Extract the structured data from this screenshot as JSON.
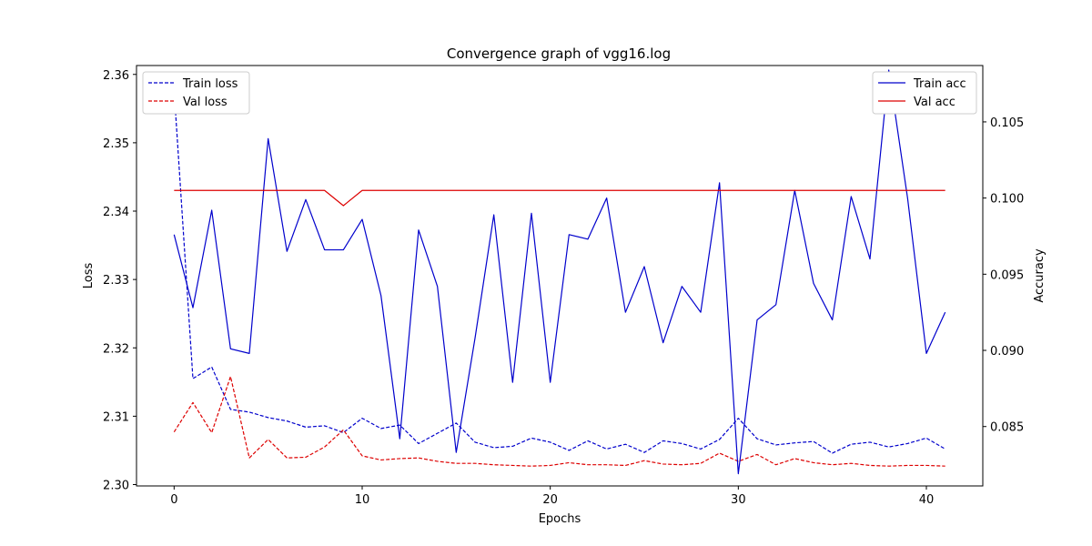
{
  "chart_data": {
    "type": "line",
    "title": "Convergence graph of vgg16.log",
    "xlabel": "Epochs",
    "ylabel_left": "Loss",
    "ylabel_right": "Accuracy",
    "xlim": [
      -2,
      43
    ],
    "ylim_left": [
      2.2998,
      2.3613
    ],
    "ylim_right": [
      0.0811,
      0.1087
    ],
    "x_ticks": [
      0,
      10,
      20,
      30,
      40
    ],
    "y_ticks_left": [
      2.3,
      2.31,
      2.32,
      2.33,
      2.34,
      2.35,
      2.36
    ],
    "y_tick_labels_left": [
      "2.30",
      "2.31",
      "2.32",
      "2.33",
      "2.34",
      "2.35",
      "2.36"
    ],
    "y_ticks_right": [
      0.085,
      0.09,
      0.095,
      0.1,
      0.105
    ],
    "y_tick_labels_right": [
      "0.085",
      "0.090",
      "0.095",
      "0.100",
      "0.105"
    ],
    "legend_left": {
      "placement": "top-left",
      "entries": [
        "Train loss",
        "Val loss"
      ]
    },
    "legend_right": {
      "placement": "top-right",
      "entries": [
        "Train acc",
        "Val acc"
      ]
    },
    "x": [
      0,
      1,
      2,
      3,
      4,
      5,
      6,
      7,
      8,
      9,
      10,
      11,
      12,
      13,
      14,
      15,
      16,
      17,
      18,
      19,
      20,
      21,
      22,
      23,
      24,
      25,
      26,
      27,
      28,
      29,
      30,
      31,
      32,
      33,
      34,
      35,
      36,
      37,
      38,
      39,
      40,
      41
    ],
    "series": [
      {
        "name": "Train loss",
        "axis": "left",
        "style": "dashed",
        "color": "#0000cc",
        "values": [
          2.3577,
          2.3155,
          2.3172,
          2.311,
          2.3106,
          2.3098,
          2.3093,
          2.3084,
          2.3086,
          2.3076,
          2.3097,
          2.3082,
          2.3087,
          2.306,
          2.3075,
          2.309,
          2.3062,
          2.3054,
          2.3056,
          2.3068,
          2.3062,
          2.305,
          2.3064,
          2.3052,
          2.3059,
          2.3047,
          2.3064,
          2.306,
          2.3052,
          2.3066,
          2.3097,
          2.3067,
          2.3058,
          2.3061,
          2.3063,
          2.3046,
          2.3059,
          2.3062,
          2.3055,
          2.306,
          2.3068,
          2.3052
        ]
      },
      {
        "name": "Val loss",
        "axis": "left",
        "style": "dashed",
        "color": "#dd0000",
        "values": [
          2.3077,
          2.312,
          2.3076,
          2.3158,
          2.3039,
          2.3066,
          2.3039,
          2.304,
          2.3055,
          2.308,
          2.3042,
          2.3036,
          2.3038,
          2.3039,
          2.3034,
          2.3031,
          2.3031,
          2.3029,
          2.3028,
          2.3027,
          2.3028,
          2.3032,
          2.3029,
          2.3029,
          2.3028,
          2.3035,
          2.303,
          2.3029,
          2.3031,
          2.3046,
          2.3034,
          2.3044,
          2.3029,
          2.3038,
          2.3032,
          2.3029,
          2.3031,
          2.3028,
          2.3027,
          2.3028,
          2.3028,
          2.3027
        ]
      },
      {
        "name": "Train acc",
        "axis": "right",
        "style": "solid",
        "color": "#0000cc",
        "values": [
          0.0976,
          0.0928,
          0.0992,
          0.0901,
          0.0898,
          0.1039,
          0.0965,
          0.0999,
          0.0966,
          0.0966,
          0.0986,
          0.0936,
          0.0842,
          0.0979,
          0.0942,
          0.0833,
          0.0908,
          0.0989,
          0.0879,
          0.099,
          0.0879,
          0.0976,
          0.0973,
          0.1,
          0.0925,
          0.0955,
          0.0905,
          0.0942,
          0.0925,
          0.101,
          0.0819,
          0.092,
          0.093,
          0.1005,
          0.0944,
          0.092,
          0.1001,
          0.096,
          0.1084,
          0.1,
          0.0898,
          0.0925
        ]
      },
      {
        "name": "Val acc",
        "axis": "right",
        "style": "solid",
        "color": "#dd0000",
        "values": [
          0.1005,
          0.1005,
          0.1005,
          0.1005,
          0.1005,
          0.1005,
          0.1005,
          0.1005,
          0.1005,
          0.0995,
          0.1005,
          0.1005,
          0.1005,
          0.1005,
          0.1005,
          0.1005,
          0.1005,
          0.1005,
          0.1005,
          0.1005,
          0.1005,
          0.1005,
          0.1005,
          0.1005,
          0.1005,
          0.1005,
          0.1005,
          0.1005,
          0.1005,
          0.1005,
          0.1005,
          0.1005,
          0.1005,
          0.1005,
          0.1005,
          0.1005,
          0.1005,
          0.1005,
          0.1005,
          0.1005,
          0.1005,
          0.1005
        ]
      }
    ]
  }
}
